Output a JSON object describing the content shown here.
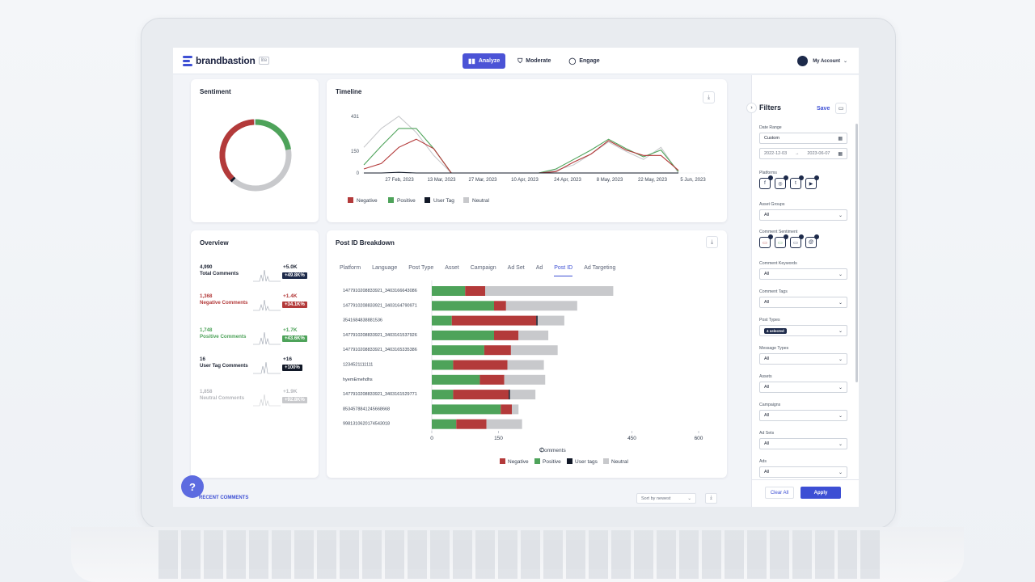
{
  "app": {
    "brand": "brandbastion",
    "badge": "lite",
    "nav": [
      {
        "label": "Analyze",
        "icon": "bar-chart-icon",
        "active": true
      },
      {
        "label": "Moderate",
        "icon": "shield-icon",
        "active": false
      },
      {
        "label": "Engage",
        "icon": "chat-icon",
        "active": false
      }
    ],
    "account_label": "My Account"
  },
  "colors": {
    "negative": "#b33a3a",
    "positive": "#4ea35a",
    "user_tag": "#111827",
    "neutral": "#c8c9cc",
    "accent": "#3d4fd4"
  },
  "sentiment": {
    "title": "Sentiment",
    "donut": {
      "negative": 1368,
      "positive": 1748,
      "user_tag": 16,
      "neutral": 1858
    }
  },
  "timeline": {
    "title": "Timeline",
    "y_ticks": [
      "0",
      "150",
      "431"
    ],
    "x_ticks": [
      "27 Feb, 2023",
      "13 Mar, 2023",
      "27 Mar, 2023",
      "10 Apr, 2023",
      "24 Apr, 2023",
      "8 May, 2023",
      "22 May, 2023",
      "5 Jun, 2023"
    ],
    "legend": [
      "Negative",
      "Positive",
      "User Tag",
      "Neutral"
    ]
  },
  "overview": {
    "title": "Overview",
    "rows": [
      {
        "num": "4,990",
        "label": "Total Comments",
        "delta": "+5.0K",
        "pct": "+49.8K%",
        "tone": "total"
      },
      {
        "num": "1,368",
        "label": "Negative Comments",
        "delta": "+1.4K",
        "pct": "+34.1K%",
        "tone": "negative"
      },
      {
        "num": "1,748",
        "label": "Positive Comments",
        "delta": "+1.7K",
        "pct": "+43.6K%",
        "tone": "positive"
      },
      {
        "num": "16",
        "label": "User Tag Comments",
        "delta": "+16",
        "pct": "+100%",
        "tone": "user_tag"
      },
      {
        "num": "1,858",
        "label": "Neutral Comments",
        "delta": "+1.9K",
        "pct": "+92.8K%",
        "tone": "neutral"
      }
    ]
  },
  "breakdown": {
    "title": "Post ID Breakdown",
    "tabs": [
      "Platform",
      "Language",
      "Post Type",
      "Asset",
      "Campaign",
      "Ad Set",
      "Ad",
      "Post ID",
      "Ad Targeting"
    ],
    "active_tab": "Post ID",
    "x_label": "Comments",
    "legend": [
      "Negative",
      "Positive",
      "User tags",
      "Neutral"
    ]
  },
  "chart_data": {
    "type": "bar",
    "orientation": "horizontal",
    "stacked": true,
    "xlabel": "Comments",
    "xlim": [
      0,
      600
    ],
    "x_ticks": [
      0,
      150,
      450,
      600
    ],
    "categories": [
      "1477910208833921_3403166643086",
      "1477910208833921_3403164790971",
      "3541684838881536",
      "1477910208833921_3403161537926",
      "1477910208833921_3403165335386",
      "1234521111111",
      "hyemEmehdhs",
      "1477910208833921_3403161529771",
      "8534578841245668668",
      "9981310620174543018"
    ],
    "series": [
      {
        "name": "Positive",
        "values": [
          75,
          140,
          45,
          140,
          118,
          48,
          108,
          48,
          155,
          55
        ]
      },
      {
        "name": "Negative",
        "values": [
          45,
          27,
          190,
          55,
          60,
          122,
          55,
          125,
          25,
          68
        ]
      },
      {
        "name": "User tags",
        "values": [
          0,
          0,
          3,
          0,
          0,
          0,
          0,
          3,
          0,
          0
        ]
      },
      {
        "name": "Neutral",
        "values": [
          288,
          160,
          60,
          67,
          105,
          82,
          92,
          57,
          15,
          80
        ]
      }
    ]
  },
  "timeline_chart": {
    "type": "line",
    "ylim": [
      0,
      431
    ],
    "series": [
      {
        "name": "Neutral",
        "values": [
          190,
          330,
          420,
          300,
          130,
          0,
          0,
          0,
          0,
          0,
          0,
          20,
          60,
          140,
          230,
          160,
          100,
          190,
          0
        ]
      },
      {
        "name": "Positive",
        "values": [
          60,
          200,
          330,
          330,
          180,
          0,
          0,
          0,
          0,
          0,
          0,
          30,
          100,
          170,
          250,
          180,
          120,
          170,
          10
        ]
      },
      {
        "name": "Negative",
        "values": [
          30,
          70,
          190,
          250,
          180,
          0,
          0,
          0,
          0,
          0,
          0,
          10,
          80,
          140,
          240,
          170,
          130,
          130,
          20
        ]
      },
      {
        "name": "User Tag",
        "values": [
          0,
          0,
          5,
          0,
          0,
          0,
          0,
          0,
          0,
          0,
          0,
          0,
          0,
          0,
          0,
          0,
          0,
          0,
          0
        ]
      }
    ]
  },
  "filters": {
    "title": "Filters",
    "save": "Save",
    "date_range_label": "Date Range",
    "date_range_value": "Custom",
    "date_from": "2022-12-03",
    "date_to": "2023-06-07",
    "platforms_label": "Platforms",
    "platform_icons": [
      "facebook-icon",
      "instagram-icon",
      "twitter-icon",
      "youtube-icon"
    ],
    "asset_groups_label": "Asset Groups",
    "asset_groups_value": "All",
    "comment_sentiment_label": "Comment Sentiment",
    "sentiment_icons": [
      "negative-comment-icon",
      "positive-comment-icon",
      "neutral-comment-icon",
      "user-tag-icon"
    ],
    "comment_keywords_label": "Comment Keywords",
    "comment_keywords_value": "All",
    "comment_tags_label": "Comment Tags",
    "comment_tags_value": "All",
    "post_types_label": "Post Types",
    "post_types_value": "4 selected",
    "message_types_label": "Message Types",
    "message_types_value": "All",
    "assets_label": "Assets",
    "assets_value": "All",
    "campaigns_label": "Campaigns",
    "campaigns_value": "All",
    "ad_sets_label": "Ad Sets",
    "ad_sets_value": "All",
    "ads_label": "Ads",
    "ads_value": "All",
    "clear_all": "Clear All",
    "apply": "Apply"
  },
  "bottom": {
    "recent_comments": "RECENT COMMENTS",
    "sort_value": "Sort by newest",
    "help": "?"
  }
}
